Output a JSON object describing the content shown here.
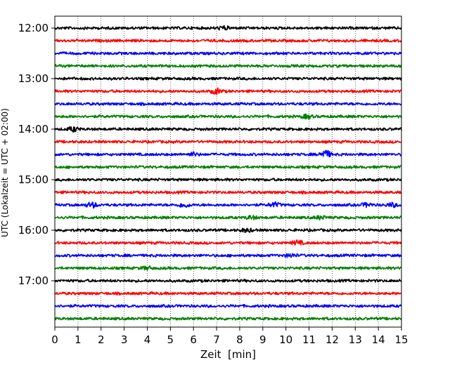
{
  "chart_data": {
    "type": "line",
    "subtype": "helicorder",
    "title": "",
    "xlabel": "Zeit  [min]",
    "ylabel": "UTC (Lokalzeit = UTC + 02:00)",
    "xlim": [
      0,
      15
    ],
    "x_ticks": [
      0,
      1,
      2,
      3,
      4,
      5,
      6,
      7,
      8,
      9,
      10,
      11,
      12,
      13,
      14,
      15
    ],
    "x_tick_labels": [
      "0",
      "1",
      "2",
      "3",
      "4",
      "5",
      "6",
      "7",
      "8",
      "9",
      "10",
      "11",
      "12",
      "13",
      "14",
      "15"
    ],
    "y_tick_labels": [
      "12:00",
      "13:00",
      "14:00",
      "15:00",
      "16:00",
      "17:00"
    ],
    "trace_minutes": 15,
    "trace_count": 24,
    "first_trace_time": "12:00",
    "color_cycle": [
      "#000000",
      "#ff0000",
      "#0000ff",
      "#008000"
    ],
    "vertical_grid": true,
    "grid_style": "dotted",
    "events": [
      {
        "trace": 0,
        "minute": 7.3,
        "amplitude": 2.2
      },
      {
        "trace": 5,
        "minute": 7.0,
        "amplitude": 3.5
      },
      {
        "trace": 7,
        "minute": 10.9,
        "amplitude": 2.5
      },
      {
        "trace": 8,
        "minute": 0.8,
        "amplitude": 3.0
      },
      {
        "trace": 10,
        "minute": 6.0,
        "amplitude": 2.0
      },
      {
        "trace": 10,
        "minute": 11.7,
        "amplitude": 5.5
      },
      {
        "trace": 14,
        "minute": 1.6,
        "amplitude": 3.5
      },
      {
        "trace": 14,
        "minute": 5.6,
        "amplitude": 3.0
      },
      {
        "trace": 14,
        "minute": 9.5,
        "amplitude": 3.0
      },
      {
        "trace": 14,
        "minute": 13.5,
        "amplitude": 2.5
      },
      {
        "trace": 14,
        "minute": 14.6,
        "amplitude": 2.5
      },
      {
        "trace": 15,
        "minute": 8.5,
        "amplitude": 2.2
      },
      {
        "trace": 15,
        "minute": 11.5,
        "amplitude": 2.2
      },
      {
        "trace": 16,
        "minute": 8.3,
        "amplitude": 2.2
      },
      {
        "trace": 17,
        "minute": 10.5,
        "amplitude": 2.8
      },
      {
        "trace": 18,
        "minute": 10.2,
        "amplitude": 2.2
      },
      {
        "trace": 19,
        "minute": 4.0,
        "amplitude": 2.0
      }
    ]
  }
}
